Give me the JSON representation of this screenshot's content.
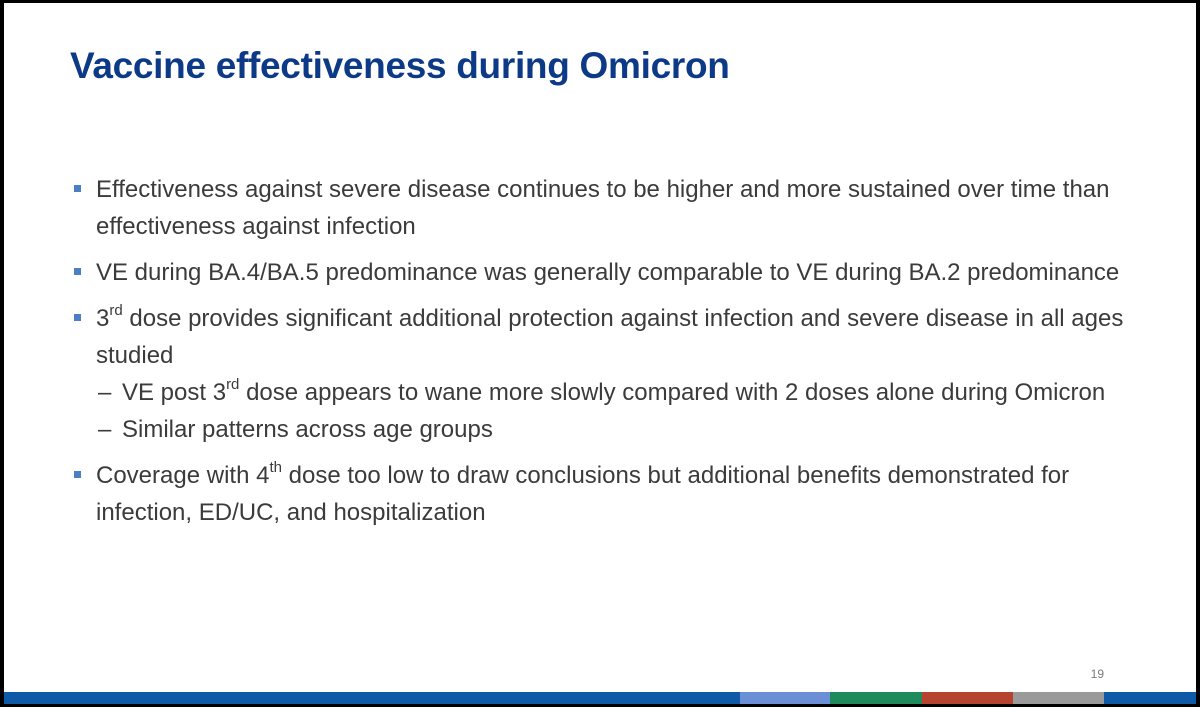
{
  "slide": {
    "title": "Vaccine effectiveness during Omicron",
    "page_number": "19",
    "bullets": [
      {
        "text": "Effectiveness against severe disease continues to be higher and more sustained over time than effectiveness against infection"
      },
      {
        "text": "VE during BA.4/BA.5 predominance was generally comparable to VE during BA.2 predominance"
      },
      {
        "pre": "3",
        "sup": "rd",
        "post": " dose provides significant additional protection against infection and severe disease in all ages studied",
        "sub_items": [
          {
            "dash": "–",
            "pre": " VE post 3",
            "sup": "rd",
            "post": " dose appears to wane more slowly compared with 2 doses alone during Omicron"
          },
          {
            "dash": "–",
            "pre": "Similar patterns across age groups"
          }
        ]
      },
      {
        "pre": "Coverage with 4",
        "sup": "th",
        "post": " dose too low to draw conclusions but additional benefits demonstrated for infection, ED/UC, and hospitalization"
      }
    ]
  },
  "colors": {
    "title": "#0d3a87",
    "body_text": "#3b3b3b",
    "bullet_marker": "#4a7fc4",
    "footer_segments": [
      "#0f5aa6",
      "#6b8fd6",
      "#1f8a5c",
      "#b5432f",
      "#9a9a9a",
      "#0f5aa6"
    ]
  },
  "icons": {
    "bullet": "square-bullet-icon"
  }
}
